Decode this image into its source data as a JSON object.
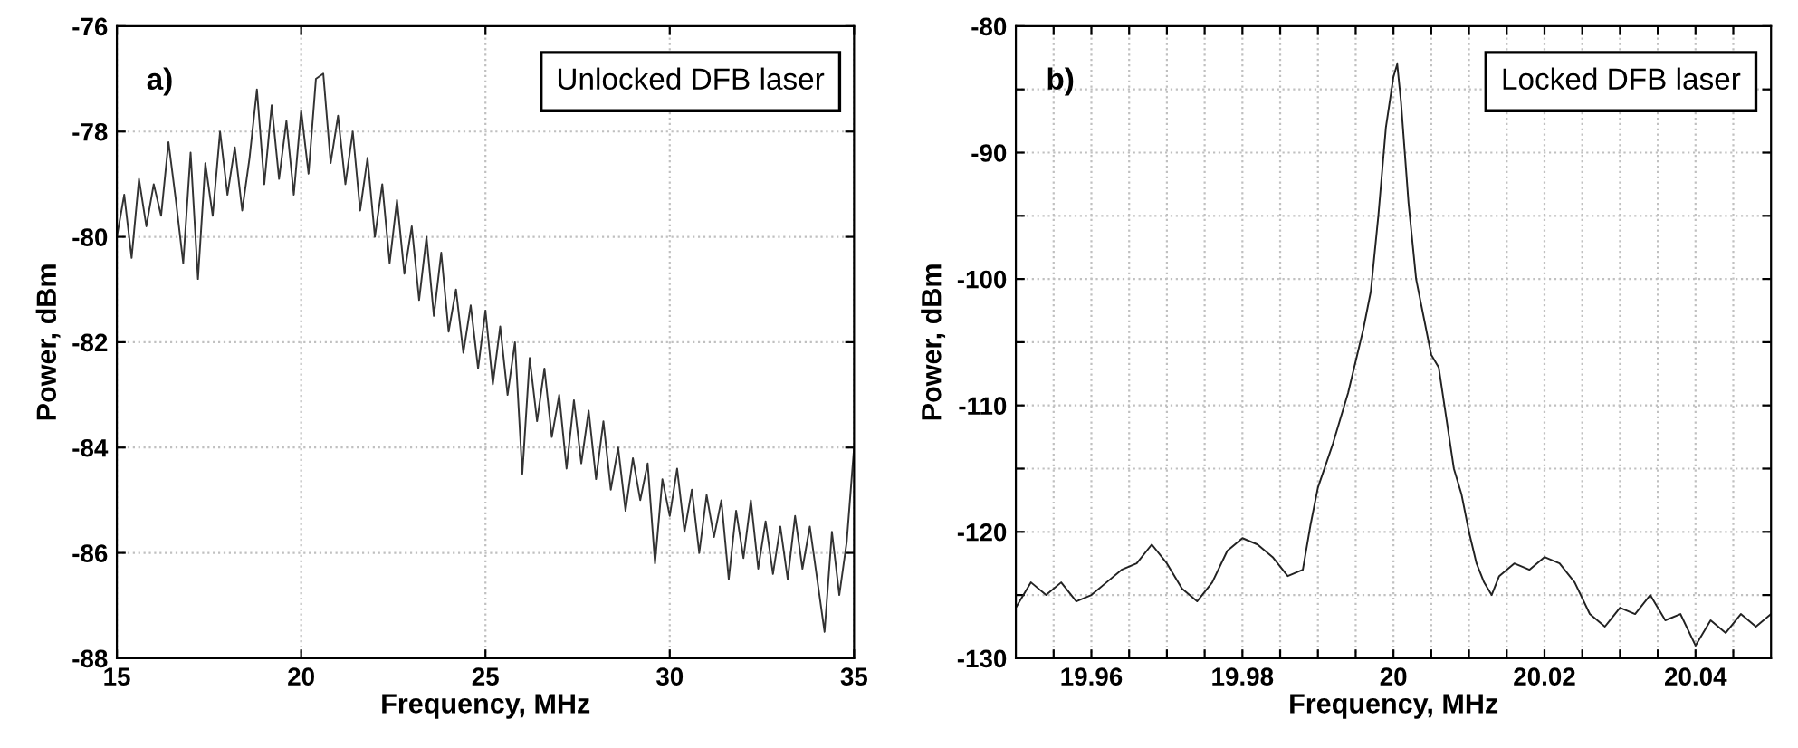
{
  "chart_data": [
    {
      "type": "line",
      "xlabel": "Frequency, MHz",
      "ylabel": "Power, dBm",
      "annotations": [
        "a)",
        "Unlocked DFB laser"
      ],
      "grid": true,
      "xlim": [
        15,
        35
      ],
      "ylim": [
        -88,
        -76
      ],
      "xticks": [
        15,
        20,
        25,
        30,
        35
      ],
      "yticks": [
        -88,
        -86,
        -84,
        -82,
        -80,
        -78,
        -76
      ],
      "series": [
        {
          "color": "#333333",
          "x": [
            15.0,
            15.2,
            15.4,
            15.6,
            15.8,
            16.0,
            16.2,
            16.4,
            16.6,
            16.8,
            17.0,
            17.2,
            17.4,
            17.6,
            17.8,
            18.0,
            18.2,
            18.4,
            18.6,
            18.8,
            19.0,
            19.2,
            19.4,
            19.6,
            19.8,
            20.0,
            20.2,
            20.4,
            20.6,
            20.8,
            21.0,
            21.2,
            21.4,
            21.6,
            21.8,
            22.0,
            22.2,
            22.4,
            22.6,
            22.8,
            23.0,
            23.2,
            23.4,
            23.6,
            23.8,
            24.0,
            24.2,
            24.4,
            24.6,
            24.8,
            25.0,
            25.2,
            25.4,
            25.6,
            25.8,
            26.0,
            26.2,
            26.4,
            26.6,
            26.8,
            27.0,
            27.2,
            27.4,
            27.6,
            27.8,
            28.0,
            28.2,
            28.4,
            28.6,
            28.8,
            29.0,
            29.2,
            29.4,
            29.6,
            29.8,
            30.0,
            30.2,
            30.4,
            30.6,
            30.8,
            31.0,
            31.2,
            31.4,
            31.6,
            31.8,
            32.0,
            32.2,
            32.4,
            32.6,
            32.8,
            33.0,
            33.2,
            33.4,
            33.6,
            33.8,
            34.0,
            34.2,
            34.4,
            34.6,
            34.8,
            35.0
          ],
          "values": [
            -80.0,
            -79.2,
            -80.4,
            -78.9,
            -79.8,
            -79.0,
            -79.6,
            -78.2,
            -79.3,
            -80.5,
            -78.4,
            -80.8,
            -78.6,
            -79.6,
            -78.0,
            -79.2,
            -78.3,
            -79.5,
            -78.5,
            -77.2,
            -79.0,
            -77.5,
            -78.9,
            -77.8,
            -79.2,
            -77.6,
            -78.8,
            -77.0,
            -76.9,
            -78.6,
            -77.7,
            -79.0,
            -78.0,
            -79.5,
            -78.5,
            -80.0,
            -79.0,
            -80.5,
            -79.3,
            -80.7,
            -79.8,
            -81.2,
            -80.0,
            -81.5,
            -80.3,
            -81.8,
            -81.0,
            -82.2,
            -81.3,
            -82.5,
            -81.4,
            -82.8,
            -81.7,
            -83.0,
            -82.0,
            -84.5,
            -82.3,
            -83.5,
            -82.5,
            -83.8,
            -83.0,
            -84.4,
            -83.1,
            -84.3,
            -83.3,
            -84.6,
            -83.5,
            -84.8,
            -84.0,
            -85.2,
            -84.2,
            -85.0,
            -84.3,
            -86.2,
            -84.6,
            -85.3,
            -84.4,
            -85.6,
            -84.8,
            -86.0,
            -84.9,
            -85.7,
            -85.0,
            -86.5,
            -85.2,
            -86.1,
            -85.0,
            -86.3,
            -85.4,
            -86.4,
            -85.5,
            -86.5,
            -85.3,
            -86.3,
            -85.5,
            -86.5,
            -87.5,
            -85.6,
            -86.8,
            -85.8,
            -84.0
          ]
        }
      ]
    },
    {
      "type": "line",
      "xlabel": "Frequency, MHz",
      "ylabel": "Power, dBm",
      "annotations": [
        "b)",
        "Locked DFB laser"
      ],
      "grid": true,
      "xlim": [
        19.95,
        20.05
      ],
      "xticks": [
        {
          "value": 19.955,
          "label": null
        },
        {
          "value": 19.96,
          "label": "19.96"
        },
        {
          "value": 19.965,
          "label": null
        },
        {
          "value": 19.97,
          "label": null
        },
        {
          "value": 19.975,
          "label": null
        },
        {
          "value": 19.98,
          "label": "19.98"
        },
        {
          "value": 19.985,
          "label": null
        },
        {
          "value": 19.99,
          "label": null
        },
        {
          "value": 19.995,
          "label": null
        },
        20,
        {
          "value": 20.005,
          "label": null
        },
        {
          "value": 20.01,
          "label": null
        },
        {
          "value": 20.015,
          "label": null
        },
        {
          "value": 20.02,
          "label": "20.02"
        },
        {
          "value": 20.025,
          "label": null
        },
        {
          "value": 20.03,
          "label": null
        },
        {
          "value": 20.035,
          "label": null
        },
        {
          "value": 20.04,
          "label": "20.04"
        },
        {
          "value": 20.045,
          "label": null
        }
      ],
      "ylim": [
        -130,
        -80
      ],
      "yticks": [
        -130,
        {
          "value": -125,
          "label": null
        },
        -120,
        {
          "value": -115,
          "label": null
        },
        -110,
        {
          "value": -105,
          "label": null
        },
        -100,
        {
          "value": -95,
          "label": null
        },
        -90,
        {
          "value": -85,
          "label": null
        },
        -80
      ],
      "series": [
        {
          "color": "#222222",
          "x": [
            19.95,
            19.952,
            19.954,
            19.956,
            19.958,
            19.96,
            19.962,
            19.964,
            19.966,
            19.968,
            19.97,
            19.972,
            19.974,
            19.976,
            19.978,
            19.98,
            19.982,
            19.984,
            19.986,
            19.988,
            19.989,
            19.99,
            19.992,
            19.994,
            19.996,
            19.997,
            19.998,
            19.999,
            20.0,
            20.0005,
            20.001,
            20.002,
            20.003,
            20.004,
            20.005,
            20.006,
            20.007,
            20.008,
            20.009,
            20.01,
            20.011,
            20.012,
            20.013,
            20.014,
            20.016,
            20.018,
            20.02,
            20.022,
            20.024,
            20.026,
            20.028,
            20.03,
            20.032,
            20.034,
            20.036,
            20.038,
            20.04,
            20.042,
            20.044,
            20.046,
            20.048,
            20.05
          ],
          "values": [
            -126,
            -124,
            -125,
            -124,
            -125.5,
            -125,
            -124,
            -123,
            -122.5,
            -121,
            -122.5,
            -124.5,
            -125.5,
            -124,
            -121.5,
            -120.5,
            -121,
            -122,
            -123.5,
            -123,
            -119.5,
            -116.5,
            -113,
            -109,
            -104,
            -101,
            -95,
            -88,
            -84,
            -83,
            -86,
            -94,
            -100,
            -103,
            -106,
            -107,
            -111,
            -115,
            -117,
            -120,
            -122.5,
            -124,
            -125,
            -123.5,
            -122.5,
            -123,
            -122,
            -122.5,
            -124,
            -126.5,
            -127.5,
            -126,
            -126.5,
            -125,
            -127,
            -126.5,
            -129,
            -127,
            -128,
            -126.5,
            -127.5,
            -126.5
          ]
        }
      ]
    }
  ]
}
